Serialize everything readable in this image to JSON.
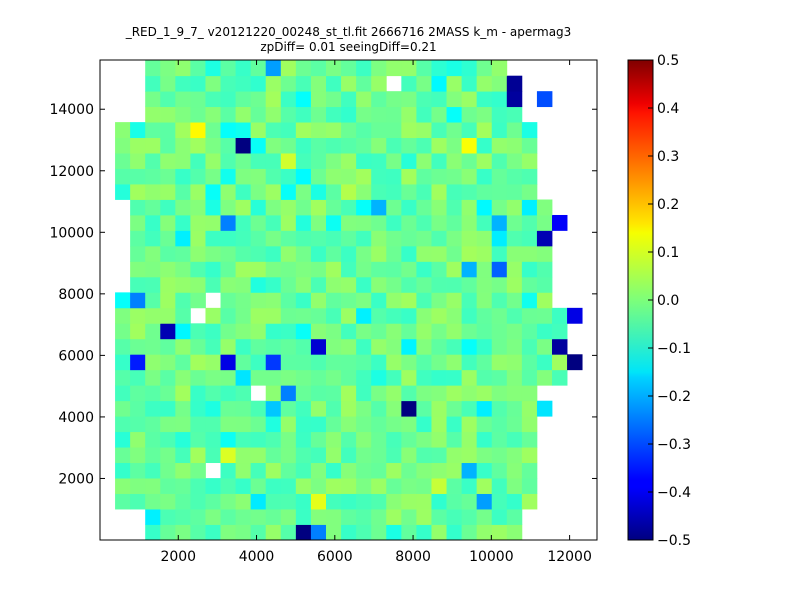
{
  "chart_data": {
    "type": "heatmap",
    "title": "_RED_1_9_7_ v20121220_00248_st_tl.fit 2666716 2MASS k_m - apermag3",
    "subtitle": "zpDiff= 0.01 seeingDiff=0.21",
    "xlabel": "",
    "ylabel": "",
    "x_ticks": [
      2000,
      4000,
      6000,
      8000,
      10000,
      12000
    ],
    "y_ticks": [
      2000,
      4000,
      6000,
      8000,
      10000,
      12000,
      14000
    ],
    "xlim": [
      0,
      12700
    ],
    "ylim": [
      0,
      15600
    ],
    "colorbar": {
      "colormap": "jet",
      "range": [
        -0.5,
        0.5
      ],
      "tick_values": [
        0.5,
        0.4,
        0.3,
        0.2,
        0.1,
        0.0,
        -0.1,
        -0.2,
        -0.3,
        -0.4,
        -0.5
      ],
      "tick_labels": [
        "0.5",
        "0.4",
        "0.3",
        "0.2",
        "0.1",
        "0.0",
        "−0.1",
        "−0.2",
        "−0.3",
        "−0.4",
        "−0.5"
      ]
    },
    "grid_cols": 33,
    "grid_rows": 31,
    "cell_width": 385,
    "cell_height": 503,
    "typical_value": -0.02,
    "value_range_estimate": [
      -0.5,
      0.15
    ],
    "missing_value": null,
    "notable_cells": [
      {
        "col": 27,
        "row": 29,
        "value": -0.48
      },
      {
        "col": 27,
        "row": 28,
        "value": -0.47
      },
      {
        "col": 29,
        "row": 28,
        "value": -0.3
      },
      {
        "col": 11,
        "row": 30,
        "value": -0.22
      },
      {
        "col": 19,
        "row": 29,
        "value": null
      },
      {
        "col": 6,
        "row": 26,
        "value": 0.13
      },
      {
        "col": 8,
        "row": 26,
        "value": -0.12
      },
      {
        "col": 9,
        "row": 25,
        "value": -0.5
      },
      {
        "col": 12,
        "row": 24,
        "value": 0.08
      },
      {
        "col": 16,
        "row": 22,
        "value": 0.05
      },
      {
        "col": 17,
        "row": 21,
        "value": -0.12
      },
      {
        "col": 18,
        "row": 21,
        "value": -0.2
      },
      {
        "col": 24,
        "row": 25,
        "value": 0.12
      },
      {
        "col": 5,
        "row": 19,
        "value": -0.14
      },
      {
        "col": 8,
        "row": 20,
        "value": -0.25
      },
      {
        "col": 26,
        "row": 20,
        "value": -0.2
      },
      {
        "col": 30,
        "row": 20,
        "value": -0.38
      },
      {
        "col": 29,
        "row": 19,
        "value": -0.45
      },
      {
        "col": 24,
        "row": 17,
        "value": -0.2
      },
      {
        "col": 26,
        "row": 17,
        "value": -0.28
      },
      {
        "col": 7,
        "row": 15,
        "value": null
      },
      {
        "col": 1,
        "row": 15,
        "value": -0.12
      },
      {
        "col": 2,
        "row": 15,
        "value": -0.25
      },
      {
        "col": 31,
        "row": 14,
        "value": -0.4
      },
      {
        "col": 4,
        "row": 13,
        "value": -0.45
      },
      {
        "col": 6,
        "row": 14,
        "value": null
      },
      {
        "col": 14,
        "row": 12,
        "value": -0.42
      },
      {
        "col": 30,
        "row": 12,
        "value": -0.47
      },
      {
        "col": 31,
        "row": 11,
        "value": -0.5
      },
      {
        "col": 2,
        "row": 11,
        "value": -0.35
      },
      {
        "col": 8,
        "row": 11,
        "value": -0.4
      },
      {
        "col": 11,
        "row": 11,
        "value": -0.32
      },
      {
        "col": 9,
        "row": 10,
        "value": -0.15
      },
      {
        "col": 10,
        "row": 9,
        "value": null
      },
      {
        "col": 12,
        "row": 9,
        "value": -0.25
      },
      {
        "col": 11,
        "row": 8,
        "value": -0.18
      },
      {
        "col": 20,
        "row": 8,
        "value": -0.5
      },
      {
        "col": 29,
        "row": 8,
        "value": -0.15
      },
      {
        "col": 8,
        "row": 5,
        "value": 0.09
      },
      {
        "col": 7,
        "row": 4,
        "value": null
      },
      {
        "col": 24,
        "row": 4,
        "value": -0.2
      },
      {
        "col": 22,
        "row": 3,
        "value": 0.07
      },
      {
        "col": 14,
        "row": 2,
        "value": 0.1
      },
      {
        "col": 25,
        "row": 2,
        "value": -0.22
      },
      {
        "col": 13,
        "row": 0,
        "value": -0.5
      },
      {
        "col": 14,
        "row": 0,
        "value": -0.25
      }
    ]
  }
}
